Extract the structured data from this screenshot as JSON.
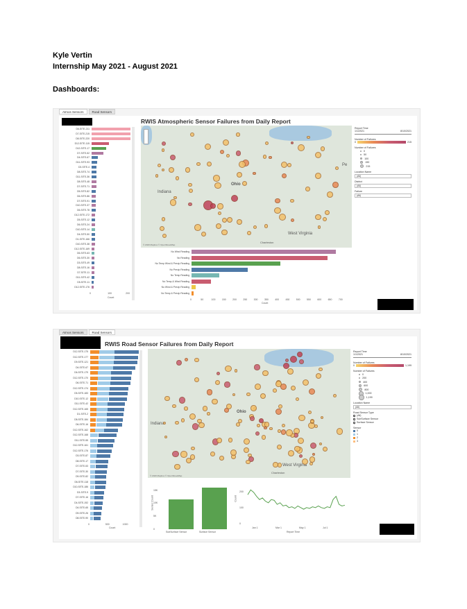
{
  "header": {
    "name": "Kyle Vertin",
    "internship": "Internship May 2021 - August 2021",
    "section": "Dashboards:"
  },
  "colors": {
    "bar_red": "#c95c70",
    "bar_pink": "#f2a1ad",
    "bar_green": "#59a14f",
    "bar_blue": "#4e79a7",
    "bar_teal": "#76b7b2",
    "bar_purple": "#b07aa1",
    "bar_orange": "#f28e2b",
    "bar_light_blue": "#a0cbe8",
    "bar_yellow": "#edc948",
    "map_dot": "#e8a445",
    "green_line": "#59a14f"
  },
  "dashboard1": {
    "tabs": [
      "Atmos Sensors",
      "Road Sensors"
    ],
    "active_tab": 0,
    "title": "RWIS Atmospheric Sensor Failures from Daily Report",
    "site_bars": [
      {
        "label": "D6-SITE-211",
        "value": 215,
        "color": "bar_pink"
      },
      {
        "label": "D7-SITE-215",
        "value": 215,
        "color": "bar_pink"
      },
      {
        "label": "D8-SITE-220",
        "value": 215,
        "color": "bar_pink"
      },
      {
        "label": "D12-SITE-115",
        "value": 95,
        "color": "bar_red"
      },
      {
        "label": "D12-SITE-17",
        "value": 80,
        "color": "bar_green"
      },
      {
        "label": "D7-SITE-52",
        "value": 65,
        "color": "bar_purple"
      },
      {
        "label": "D4-SITE-67",
        "value": 35,
        "color": "bar_blue"
      },
      {
        "label": "D11-SITE-93",
        "value": 30,
        "color": "bar_blue"
      },
      {
        "label": "D3-SITE-4",
        "value": 28,
        "color": "bar_blue"
      },
      {
        "label": "D8-SITE-74",
        "value": 28,
        "color": "bar_blue"
      },
      {
        "label": "D11-SITE-36",
        "value": 27,
        "color": "bar_blue"
      },
      {
        "label": "D8-SITE-48",
        "value": 26,
        "color": "bar_purple"
      },
      {
        "label": "D7-SITE-71",
        "value": 25,
        "color": "bar_purple"
      },
      {
        "label": "D5-SITE-82",
        "value": 24,
        "color": "bar_blue"
      },
      {
        "label": "D6-SITE-86",
        "value": 24,
        "color": "bar_purple"
      },
      {
        "label": "D7-SITE-91",
        "value": 23,
        "color": "bar_blue"
      },
      {
        "label": "D10-SITE-37",
        "value": 22,
        "color": "bar_purple"
      },
      {
        "label": "D6-SITE-78",
        "value": 22,
        "color": "bar_blue"
      },
      {
        "label": "D12-SITE-172",
        "value": 21,
        "color": "bar_purple"
      },
      {
        "label": "D5-SITE-12",
        "value": 20,
        "color": "bar_blue"
      },
      {
        "label": "D6-SITE-24",
        "value": 20,
        "color": "bar_purple"
      },
      {
        "label": "D10-SITE-14",
        "value": 19,
        "color": "bar_teal"
      },
      {
        "label": "D4-SITE-50",
        "value": 19,
        "color": "bar_blue"
      },
      {
        "label": "D1-SITE-166",
        "value": 18,
        "color": "bar_blue"
      },
      {
        "label": "D10-SITE-38",
        "value": 18,
        "color": "bar_purple"
      },
      {
        "label": "D12-SITE-169",
        "value": 17,
        "color": "bar_purple"
      },
      {
        "label": "D6-SITE-63",
        "value": 17,
        "color": "bar_teal"
      },
      {
        "label": "D6-SITE-30",
        "value": 16,
        "color": "bar_purple"
      },
      {
        "label": "D3-SITE-49",
        "value": 16,
        "color": "bar_blue"
      },
      {
        "label": "D8-SITE-16",
        "value": 15,
        "color": "bar_purple"
      },
      {
        "label": "D7-SITE-11",
        "value": 14,
        "color": "bar_purple"
      },
      {
        "label": "D11-SITE-42",
        "value": 14,
        "color": "bar_blue"
      },
      {
        "label": "D5-SITE-11",
        "value": 13,
        "color": "bar_blue"
      },
      {
        "label": "D12-SITE-176",
        "value": 12,
        "color": "bar_purple"
      }
    ],
    "site_axis": {
      "ticks": [
        "0",
        "100",
        "200"
      ],
      "max": 230,
      "label": "Count"
    },
    "failure_bars": [
      {
        "label": "No Wind Reading",
        "value": 680,
        "color": "bar_purple"
      },
      {
        "label": "No Reading",
        "value": 640,
        "color": "bar_red"
      },
      {
        "label": "No Temp Wind & Precip Reading",
        "value": 420,
        "color": "bar_green"
      },
      {
        "label": "No Precip Reading",
        "value": 265,
        "color": "bar_blue"
      },
      {
        "label": "No Temp Reading",
        "value": 130,
        "color": "bar_teal"
      },
      {
        "label": "No Temp & Wind Reading",
        "value": 90,
        "color": "bar_red"
      },
      {
        "label": "No Wind & Precip Reading",
        "value": 20,
        "color": "bar_yellow"
      },
      {
        "label": "No Temp & Precip Reading",
        "value": 10,
        "color": "bar_orange"
      }
    ],
    "failure_axis": {
      "ticks": [
        "0",
        "50",
        "100",
        "150",
        "200",
        "250",
        "300",
        "350",
        "400",
        "450",
        "500",
        "550",
        "600",
        "650",
        "700"
      ],
      "max": 720,
      "label": "Count"
    },
    "map_labels": {
      "indiana": "Indiana",
      "ohio": "Ohio",
      "west_virginia": "West Virginia",
      "pa": "Pe",
      "charleston": "Charleston",
      "credit": "© 2020 Mapbox © OpenStreetMap"
    },
    "side": {
      "report_time": "Report Time",
      "date_start": "1/1/2021",
      "date_end": "8/10/2021",
      "num_failures": "Number of Failures",
      "color_min": "0",
      "color_max": "215",
      "size_title": "Number of Failures",
      "size_legend": [
        "0",
        "50",
        "100",
        "150",
        "215"
      ],
      "location_name": "Location Name",
      "location_value": "(All)",
      "district": "District",
      "district_value": "(All)",
      "failure": "Failure",
      "failure_value": "(All)"
    }
  },
  "dashboard2": {
    "tabs": [
      "Atmos Sensors",
      "Road Sensors"
    ],
    "active_tab": 1,
    "title": "RWIS Road Sensor Failures from Daily Report",
    "site_labels": [
      "D12-SITE-175",
      "D12-SITE-177",
      "D9-SITE-121",
      "D4-SITE-67",
      "D6-SITE-179",
      "D12-SITE-170",
      "D6-SITE-71",
      "D12-SITE-174",
      "D5-SITE-183",
      "D10-SITE-12",
      "D11-SITE-42",
      "D12-SITE-165",
      "D1-SITE-2",
      "D8-SITE-184",
      "D6-SITE-16",
      "D12-SITE-162",
      "D12-SITE-168",
      "D11-SITE-55",
      "D12-SITE-161",
      "D12-SITE-176",
      "D3-SITE-87",
      "D8-SITE-17",
      "D7-SITE-53",
      "D7-SITE-30",
      "D9-SITE-82",
      "D6-SITE-118",
      "D10-SITE-186",
      "D3-SITE-9",
      "D7-SITE-16",
      "D4-SITE-192",
      "D4-SITE-65",
      "D9-SITE-26",
      "D8-SITE-90"
    ],
    "site_values": [
      1400,
      1380,
      1350,
      1300,
      1200,
      1180,
      1150,
      1100,
      1080,
      1050,
      1000,
      980,
      960,
      940,
      920,
      800,
      760,
      700,
      650,
      620,
      580,
      520,
      500,
      480,
      460,
      450,
      430,
      400,
      380,
      360,
      340,
      320,
      300
    ],
    "site_axis": {
      "ticks": [
        "0",
        "500",
        "1000"
      ],
      "max": 1450,
      "label": "Count"
    },
    "sensor_bars": [
      {
        "label": "SubSurface Sensor",
        "value": 11500
      },
      {
        "label": "Surface Sensor",
        "value": 16000
      }
    ],
    "sensor_axis": {
      "ticks": [
        "0",
        "5K",
        "10K",
        "15K"
      ],
      "max": 16500,
      "label": "Sensor Count"
    },
    "line_axis": {
      "yticks": [
        "0",
        "100",
        "200"
      ],
      "xticks": [
        "Jan 1",
        "Mar 1",
        "May 1",
        "Jul 1"
      ],
      "ylabel": "Count",
      "xlabel": "Report Time"
    },
    "line_values": [
      180,
      210,
      195,
      170,
      150,
      160,
      140,
      130,
      150,
      145,
      120,
      130,
      110,
      115,
      100,
      105,
      95,
      110,
      100,
      90,
      100,
      95,
      105,
      100,
      110,
      100,
      95,
      105,
      100,
      150,
      170,
      120,
      110,
      115
    ],
    "map_labels": {
      "indiana": "Indiana",
      "ohio": "Ohio",
      "west_virginia": "West Virginia",
      "charleston": "Charleston",
      "credit": "© 2020 Mapbox © OpenStreetMap"
    },
    "side": {
      "report_time": "Report Time",
      "date_start": "1/1/2021",
      "date_end": "8/10/2021",
      "num_failures": "Number of Failures",
      "color_min": "0",
      "color_max": "1,199",
      "size_title": "Number of Failures",
      "size_legend": [
        "0",
        "200",
        "400",
        "600",
        "800",
        "1,000",
        "1,199"
      ],
      "location_name": "Location Name",
      "location_value": "(All)",
      "road_sensor_type": "Road Sensor Type",
      "sensor_types": [
        "(All)",
        "SubSurface Sensor",
        "Surface Sensor"
      ],
      "sensor": "Sensor",
      "sensor_values": [
        "0",
        "1",
        "2",
        "3"
      ]
    }
  }
}
